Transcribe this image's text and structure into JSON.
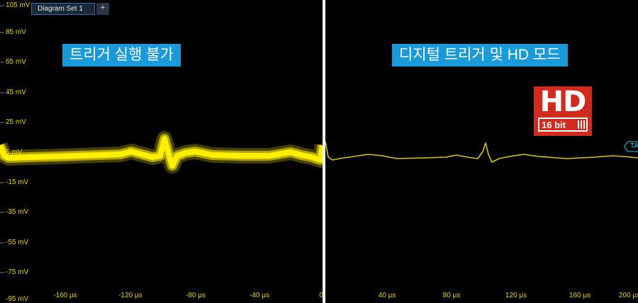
{
  "tab": {
    "label": "Diagram Set 1",
    "add_label": "+"
  },
  "left": {
    "label": "트리거 실행 불가",
    "y_ticks": [
      "105 mV",
      "85 mV",
      "65 mV",
      "45 mV",
      "25 mV",
      "5 mV",
      "-15 mV",
      "-35 mV",
      "-55 mV",
      "-75 mV",
      "-95 mV"
    ],
    "x_ticks": [
      "-160 µs",
      "-120 µs",
      "-80 µs",
      "-40 µs",
      "0"
    ]
  },
  "right": {
    "label": "디지털 트리거 및 HD 모드",
    "x_ticks": [
      "40 µs",
      "80 µs",
      "120 µs",
      "160 µs",
      "200 µs"
    ],
    "badge": {
      "hd": "HD",
      "bits": "16 bit"
    },
    "trigger_marker": "TA"
  },
  "colors": {
    "trace": "#f0e000",
    "label_bg": "#1a9ad8",
    "badge": "#d32a1f",
    "trigger": "#1ed3e0"
  }
}
